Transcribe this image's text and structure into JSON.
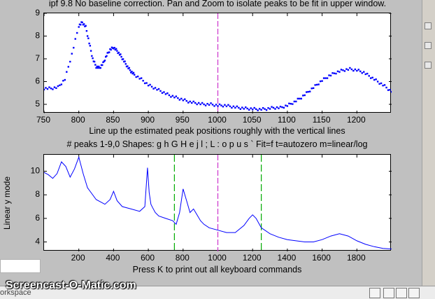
{
  "window": {
    "title": "ipf 9.8 No baseline correction. Pan and Zoom to isolate peaks to be fit in upper window."
  },
  "upper_plot": {
    "xlabel": "Line up the estimated peak positions roughly with the vertical lines"
  },
  "lower_plot": {
    "title": "# peaks 1-9,0   Shapes: g h G H e j l ; L : o p u s `   Fit=f   t=autozero   m=linear/log",
    "ylabel": "Linear y mode",
    "xlabel": "Press K to print out all keyboard commands"
  },
  "watermark": "Screencast-O-Matic.com",
  "workspace_label": "orkspace",
  "colors": {
    "data": "#0000ff",
    "marker": "#cc33cc",
    "peak_line": "#00aa00"
  },
  "chart_data": [
    {
      "type": "scatter",
      "xlim": [
        750,
        1250
      ],
      "ylim": [
        4.6,
        9
      ],
      "x_ticks": [
        750,
        800,
        850,
        900,
        950,
        1000,
        1050,
        1100,
        1150,
        1200
      ],
      "y_ticks": [
        5,
        6,
        7,
        8,
        9
      ],
      "center_marker_x": 1000,
      "series": [
        {
          "x": [
            750,
            760,
            770,
            780,
            790,
            800,
            805,
            810,
            815,
            820,
            825,
            830,
            835,
            840,
            845,
            850,
            855,
            860,
            865,
            870,
            875,
            880,
            890,
            900,
            910,
            920,
            930,
            940,
            950,
            960,
            970,
            980,
            990,
            1000,
            1010,
            1020,
            1030,
            1040,
            1050,
            1060,
            1070,
            1080,
            1090,
            1100,
            1110,
            1120,
            1130,
            1140,
            1150,
            1160,
            1170,
            1180,
            1190,
            1200,
            1210,
            1220,
            1230,
            1240,
            1250
          ],
          "y": [
            5.7,
            5.7,
            5.75,
            6.1,
            7.2,
            8.45,
            8.6,
            8.4,
            7.7,
            7.0,
            6.65,
            6.6,
            6.8,
            7.15,
            7.4,
            7.5,
            7.35,
            7.15,
            6.9,
            6.65,
            6.45,
            6.3,
            6.1,
            5.85,
            5.7,
            5.55,
            5.4,
            5.3,
            5.2,
            5.1,
            5.05,
            5.0,
            5.0,
            4.95,
            4.95,
            4.9,
            4.85,
            4.82,
            4.8,
            4.78,
            4.8,
            4.85,
            4.85,
            4.95,
            5.1,
            5.3,
            5.55,
            5.8,
            6.05,
            6.25,
            6.4,
            6.5,
            6.55,
            6.5,
            6.4,
            6.2,
            6.0,
            5.8,
            5.55
          ]
        }
      ]
    },
    {
      "type": "line",
      "xlim": [
        0,
        2000
      ],
      "ylim": [
        3.2,
        11.4
      ],
      "x_ticks": [
        200,
        400,
        600,
        800,
        1000,
        1200,
        1400,
        1600,
        1800
      ],
      "y_ticks": [
        4,
        6,
        8,
        10
      ],
      "center_marker_x": 1000,
      "peak_lines_x": [
        750,
        1250
      ],
      "series": [
        {
          "x": [
            0,
            25,
            50,
            75,
            100,
            125,
            150,
            175,
            200,
            225,
            250,
            300,
            350,
            380,
            400,
            420,
            450,
            500,
            550,
            580,
            595,
            605,
            615,
            625,
            640,
            660,
            700,
            740,
            760,
            780,
            800,
            820,
            840,
            860,
            880,
            900,
            920,
            950,
            1000,
            1050,
            1100,
            1150,
            1180,
            1200,
            1220,
            1250,
            1300,
            1350,
            1400,
            1450,
            1500,
            1550,
            1600,
            1650,
            1700,
            1750,
            1800,
            1850,
            1900,
            1950,
            2000
          ],
          "y": [
            9.9,
            9.7,
            9.4,
            9.8,
            10.8,
            10.4,
            9.5,
            10.2,
            11.2,
            9.8,
            8.6,
            7.6,
            7.2,
            7.6,
            8.3,
            7.5,
            7.0,
            6.8,
            6.6,
            7.0,
            10.3,
            8.2,
            7.2,
            6.9,
            6.5,
            6.2,
            6.0,
            5.8,
            5.5,
            6.5,
            8.5,
            7.5,
            6.5,
            6.8,
            6.3,
            5.8,
            5.5,
            5.2,
            5.0,
            4.8,
            4.8,
            5.4,
            6.0,
            6.3,
            6.0,
            5.2,
            4.7,
            4.4,
            4.2,
            4.1,
            4.0,
            4.0,
            4.2,
            4.5,
            4.7,
            4.5,
            4.1,
            3.8,
            3.6,
            3.45,
            3.4
          ]
        }
      ]
    }
  ]
}
